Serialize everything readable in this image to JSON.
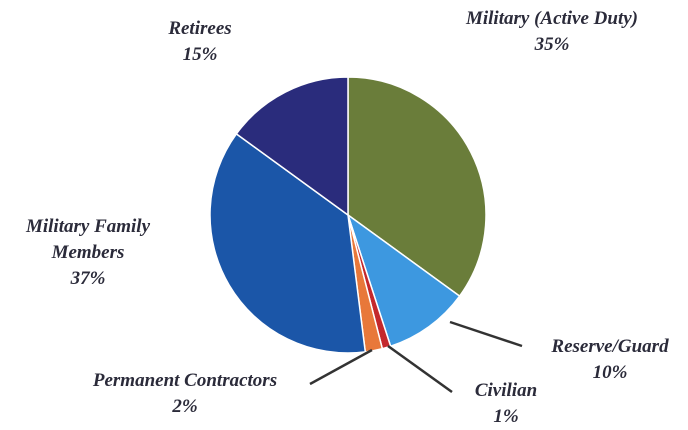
{
  "chart_data": {
    "type": "pie",
    "categories": [
      "Military (Active Duty)",
      "Reserve/Guard",
      "Civilian",
      "Permanent Contractors",
      "Military Family Members",
      "Retirees"
    ],
    "values": [
      35,
      10,
      1,
      2,
      37,
      15
    ],
    "value_labels": [
      "35%",
      "10%",
      "1%",
      "2%",
      "37%",
      "15%"
    ],
    "colors": [
      "#6a7d3a",
      "#3d98e0",
      "#c4282c",
      "#e8783a",
      "#1b56a8",
      "#2a2c7c"
    ]
  }
}
